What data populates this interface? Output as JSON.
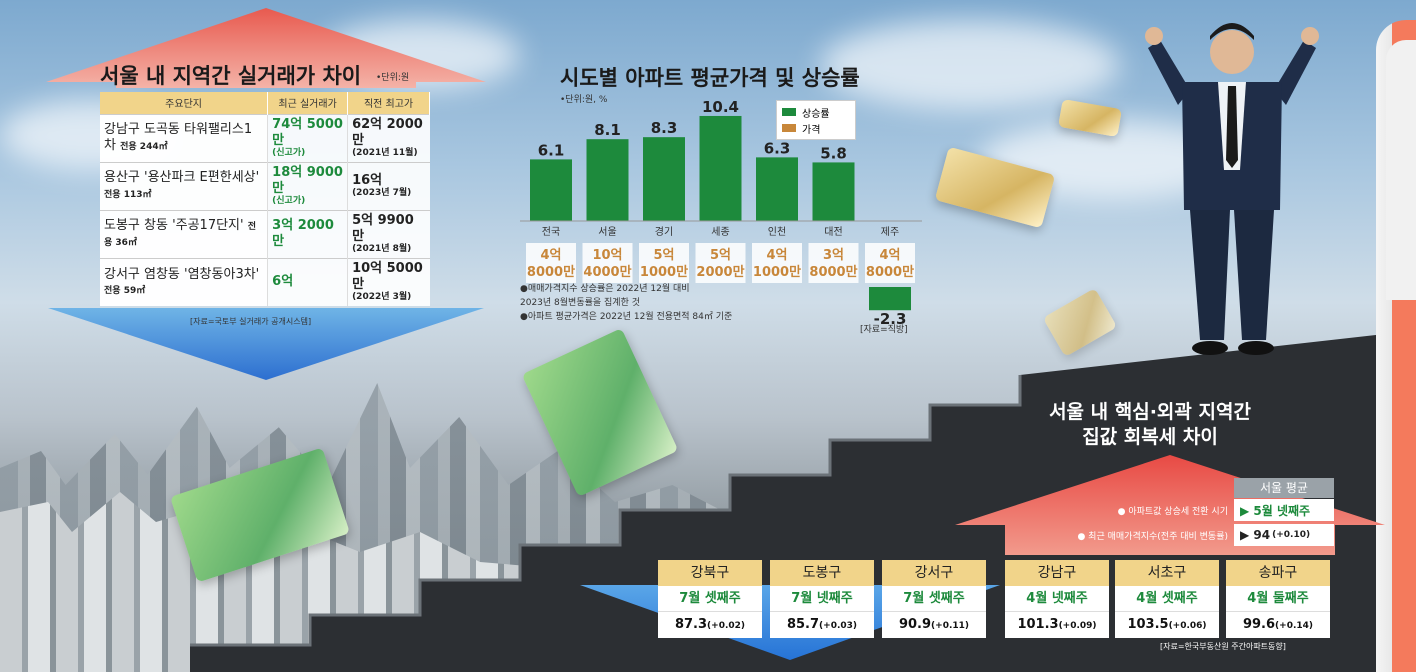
{
  "panel1": {
    "title": "서울 내 지역간 실거래가 차이",
    "unit": "•단위:원",
    "headers": [
      "주요단지",
      "최근 실거래가",
      "직전 최고가"
    ],
    "rows": [
      {
        "name": "강남구 도곡동 타워팰리스1차",
        "area": "전용 244㎡",
        "recent_main": "74억 5000만",
        "recent_note": "(신고가)",
        "prev_main": "62억 2000만",
        "prev_note": "(2021년 11월)"
      },
      {
        "name": "용산구 '용산파크 E편한세상'",
        "area": "전용 113㎡",
        "recent_main": "18억 9000만",
        "recent_note": "(신고가)",
        "prev_main": "16억",
        "prev_note": "(2023년 7월)"
      },
      {
        "name": "도봉구 창동 '주공17단지'",
        "area": "전용 36㎡",
        "recent_main": "3억 2000만",
        "recent_note": "",
        "prev_main": "5억 9900만",
        "prev_note": "(2021년 8월)"
      },
      {
        "name": "강서구 염창동 '염창동아3차'",
        "area": "전용 59㎡",
        "recent_main": "6억",
        "recent_note": "",
        "prev_main": "10억 5000만",
        "prev_note": "(2022년 3월)"
      }
    ],
    "source": "[자료=국토부 실거래가 공개시스템]"
  },
  "panel2": {
    "title": "시도별 아파트 평균가격 및 상승률",
    "unit": "•단위:원, %",
    "legend": [
      "상승률",
      "가격"
    ],
    "notes": [
      "●매매가격지수 상승률은 2022년 12월 대비",
      "2023년 8월변동률을 집계한 것",
      "●아파트 평균가격은 2022년 12월 전용면적 84㎡ 기준"
    ],
    "source": "[자료=직방]"
  },
  "chart_data": {
    "type": "bar",
    "categories": [
      "전국",
      "서울",
      "경기",
      "세종",
      "인천",
      "대전",
      "제주"
    ],
    "values": [
      6.1,
      8.1,
      8.3,
      10.4,
      6.3,
      5.8,
      -2.3
    ],
    "value_labels": [
      "6.1",
      "8.1",
      "8.3",
      "10.4",
      "6.3",
      "5.8",
      "-2.3"
    ],
    "prices": [
      "4억 8000만",
      "10억 4000만",
      "5억 1000만",
      "5억 2000만",
      "4억 1000만",
      "3억 8000만",
      "4억 8000만"
    ],
    "ylim": [
      -3,
      11
    ],
    "colors": {
      "bar": "#1d8a3c",
      "price": "#c8873a"
    }
  },
  "panel3": {
    "title_line1": "서울 내 핵심·외곽 지역간",
    "title_line2": "집값 회복세 차이",
    "seoul_avg": "서울 평균",
    "row1_label": "● 아파트값 상승세 전환 시기",
    "row1_value": "▶ 5월 넷째주",
    "row2_label": "● 최근 매매가격지수(전주 대비 변동률)",
    "row2_value": "▶ 94",
    "row2_change": "(+0.10)",
    "districts": [
      {
        "name": "강북구",
        "week": "7월 셋째주",
        "index": "87.3",
        "change": "(+0.02)"
      },
      {
        "name": "도봉구",
        "week": "7월 넷째주",
        "index": "85.7",
        "change": "(+0.03)"
      },
      {
        "name": "강서구",
        "week": "7월 셋째주",
        "index": "90.9",
        "change": "(+0.11)"
      },
      {
        "name": "강남구",
        "week": "4월 넷째주",
        "index": "101.3",
        "change": "(+0.09)"
      },
      {
        "name": "서초구",
        "week": "4월 셋째주",
        "index": "103.5",
        "change": "(+0.06)"
      },
      {
        "name": "송파구",
        "week": "4월 둘째주",
        "index": "99.6",
        "change": "(+0.14)"
      }
    ],
    "source": "[자료=한국부동산원 주간아파트동향]"
  }
}
